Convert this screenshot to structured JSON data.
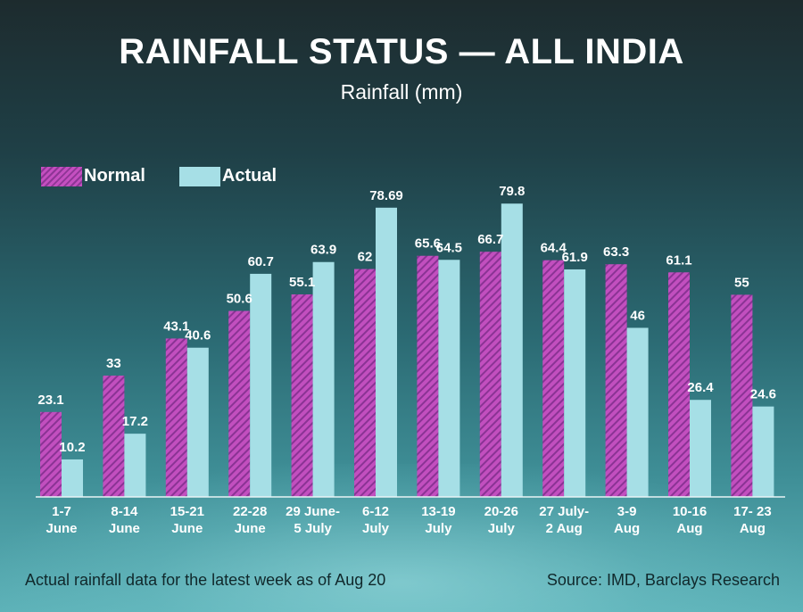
{
  "chart_data": {
    "type": "bar",
    "title": "RAINFALL STATUS — ALL INDIA",
    "subtitle": "Rainfall (mm)",
    "categories": [
      [
        "1-7",
        "June"
      ],
      [
        "8-14",
        "June"
      ],
      [
        "15-21",
        "June"
      ],
      [
        "22-28",
        "June"
      ],
      [
        "29 June-",
        "5 July"
      ],
      [
        "6-12",
        "July"
      ],
      [
        "13-19",
        "July"
      ],
      [
        "20-26",
        "July"
      ],
      [
        "27 July-",
        "2 Aug"
      ],
      [
        "3-9",
        "Aug"
      ],
      [
        "10-16",
        "Aug"
      ],
      [
        "17- 23",
        "Aug"
      ]
    ],
    "series": [
      {
        "name": "Normal",
        "values": [
          23.1,
          33,
          43.1,
          50.6,
          55.1,
          62,
          65.6,
          66.7,
          64.4,
          63.3,
          61.1,
          55
        ],
        "labels": [
          "23.1",
          "33",
          "43.1",
          "50.6",
          "55.1",
          "62",
          "65.6",
          "66.7",
          "64.4",
          "63.3",
          "61.1",
          "55"
        ],
        "color": "#b548b4"
      },
      {
        "name": "Actual",
        "values": [
          10.2,
          17.2,
          40.6,
          60.7,
          63.9,
          78.69,
          64.5,
          79.8,
          61.9,
          46,
          26.4,
          24.6
        ],
        "labels": [
          "10.2",
          "17.2",
          "40.6",
          "60.7",
          "63.9",
          "78.69",
          "64.5",
          "79.8",
          "61.9",
          "46",
          "26.4",
          "24.6"
        ],
        "color": "#a6dfe6"
      }
    ],
    "ylim": [
      0,
      80
    ],
    "grid": false,
    "legend": "top-left"
  },
  "legend": {
    "normal": "Normal",
    "actual": "Actual"
  },
  "footer": {
    "note": "Actual rainfall data for the latest week as of Aug 20",
    "source": "Source: IMD, Barclays Research"
  }
}
